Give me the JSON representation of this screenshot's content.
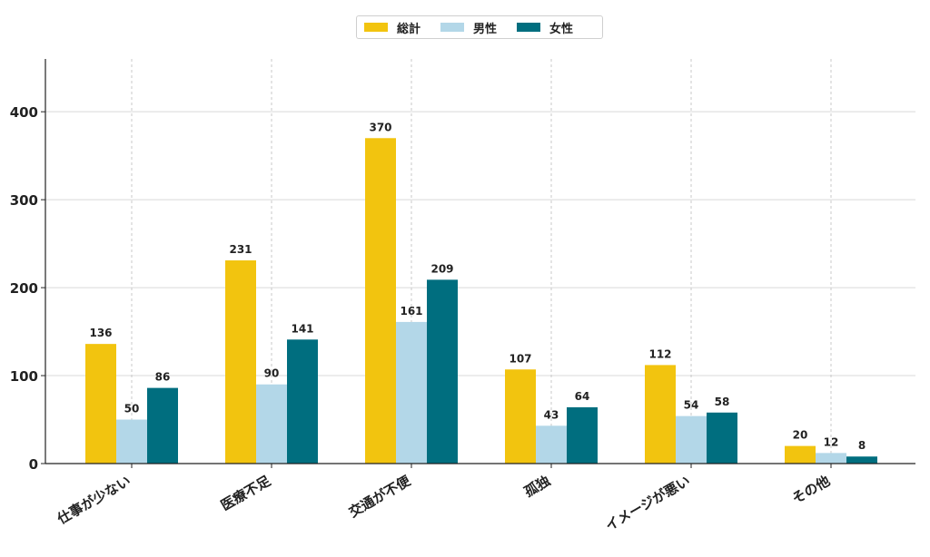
{
  "chart_data": {
    "type": "bar",
    "title": "",
    "xlabel": "",
    "ylabel": "",
    "categories": [
      "仕事が少ない",
      "医療不足",
      "交通が不便",
      "孤独",
      "イメージが悪い",
      "その他"
    ],
    "series": [
      {
        "name": "総計",
        "color": "#f2c40f",
        "values": [
          136,
          231,
          370,
          107,
          112,
          20
        ]
      },
      {
        "name": "男性",
        "color": "#b3d7e8",
        "values": [
          50,
          90,
          161,
          43,
          54,
          12
        ]
      },
      {
        "name": "女性",
        "color": "#006e7f",
        "values": [
          86,
          141,
          209,
          64,
          58,
          8
        ]
      }
    ],
    "ylim": [
      0,
      460
    ],
    "yticks": [
      0,
      100,
      200,
      300,
      400
    ],
    "grid": true,
    "legend_position": "top-center",
    "data_labels": true
  }
}
